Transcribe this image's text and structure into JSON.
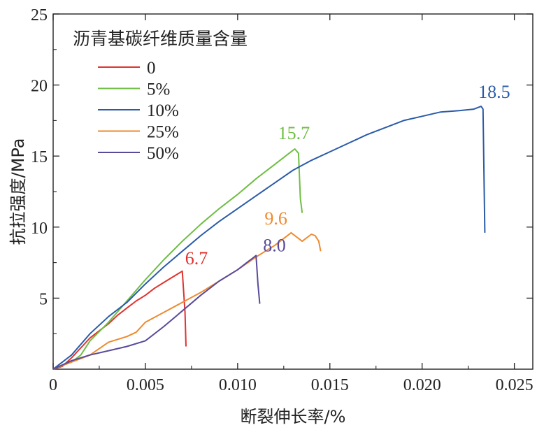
{
  "chart_data": {
    "type": "line",
    "xlabel": "断裂伸长率/%",
    "ylabel": "抗拉强度/MPa",
    "xlim": [
      0,
      0.026
    ],
    "ylim": [
      0,
      25
    ],
    "x_ticks": [
      0,
      0.005,
      0.01,
      0.015,
      0.02,
      0.025
    ],
    "x_tick_labels": [
      "0",
      "0.005",
      "0.010",
      "0.015",
      "0.020",
      "0.025"
    ],
    "y_ticks": [
      5,
      10,
      15,
      20,
      25
    ],
    "y_tick_labels": [
      "5",
      "10",
      "15",
      "20",
      "25"
    ],
    "legend_title": "沥青基碳纤维质量含量",
    "legend_position": "top-left",
    "series": [
      {
        "name": "0",
        "color": "#e0332f",
        "peak_label": "6.7",
        "points": [
          [
            0,
            0
          ],
          [
            0.0005,
            0.2
          ],
          [
            0.001,
            0.8
          ],
          [
            0.0015,
            1.5
          ],
          [
            0.002,
            2.2
          ],
          [
            0.0025,
            2.7
          ],
          [
            0.003,
            3.2
          ],
          [
            0.0035,
            3.8
          ],
          [
            0.004,
            4.3
          ],
          [
            0.0045,
            4.8
          ],
          [
            0.005,
            5.2
          ],
          [
            0.0055,
            5.7
          ],
          [
            0.006,
            6.1
          ],
          [
            0.0065,
            6.5
          ],
          [
            0.007,
            6.9
          ],
          [
            0.00715,
            4.0
          ],
          [
            0.0072,
            1.6
          ]
        ]
      },
      {
        "name": "5%",
        "color": "#6fbe44",
        "peak_label": "15.7",
        "points": [
          [
            0,
            0
          ],
          [
            0.001,
            0.5
          ],
          [
            0.0015,
            1.0
          ],
          [
            0.002,
            2.0
          ],
          [
            0.003,
            3.3
          ],
          [
            0.004,
            4.8
          ],
          [
            0.005,
            6.3
          ],
          [
            0.006,
            7.7
          ],
          [
            0.007,
            9.0
          ],
          [
            0.008,
            10.2
          ],
          [
            0.009,
            11.3
          ],
          [
            0.01,
            12.3
          ],
          [
            0.011,
            13.4
          ],
          [
            0.012,
            14.4
          ],
          [
            0.0128,
            15.2
          ],
          [
            0.0131,
            15.5
          ],
          [
            0.0133,
            15.2
          ],
          [
            0.0134,
            12.0
          ],
          [
            0.0135,
            11.0
          ]
        ]
      },
      {
        "name": "10%",
        "color": "#2a5ba8",
        "peak_label": "18.5",
        "points": [
          [
            0,
            0
          ],
          [
            0.001,
            1.0
          ],
          [
            0.002,
            2.5
          ],
          [
            0.003,
            3.7
          ],
          [
            0.004,
            4.7
          ],
          [
            0.005,
            6.0
          ],
          [
            0.006,
            7.2
          ],
          [
            0.007,
            8.3
          ],
          [
            0.008,
            9.4
          ],
          [
            0.009,
            10.4
          ],
          [
            0.01,
            11.3
          ],
          [
            0.011,
            12.2
          ],
          [
            0.012,
            13.1
          ],
          [
            0.013,
            14.0
          ],
          [
            0.014,
            14.7
          ],
          [
            0.015,
            15.3
          ],
          [
            0.016,
            15.9
          ],
          [
            0.017,
            16.5
          ],
          [
            0.018,
            17.0
          ],
          [
            0.019,
            17.5
          ],
          [
            0.02,
            17.8
          ],
          [
            0.021,
            18.1
          ],
          [
            0.022,
            18.2
          ],
          [
            0.0228,
            18.3
          ],
          [
            0.0232,
            18.5
          ],
          [
            0.0233,
            18.3
          ],
          [
            0.0234,
            9.6
          ]
        ]
      },
      {
        "name": "25%",
        "color": "#ef8a2d",
        "peak_label": "9.6",
        "points": [
          [
            0,
            0
          ],
          [
            0.001,
            0.5
          ],
          [
            0.002,
            1.0
          ],
          [
            0.003,
            1.9
          ],
          [
            0.004,
            2.3
          ],
          [
            0.0045,
            2.6
          ],
          [
            0.005,
            3.3
          ],
          [
            0.006,
            4.0
          ],
          [
            0.007,
            4.7
          ],
          [
            0.008,
            5.4
          ],
          [
            0.009,
            6.2
          ],
          [
            0.01,
            7.0
          ],
          [
            0.011,
            7.9
          ],
          [
            0.012,
            8.7
          ],
          [
            0.0125,
            9.2
          ],
          [
            0.0129,
            9.6
          ],
          [
            0.0132,
            9.3
          ],
          [
            0.0135,
            9.0
          ],
          [
            0.0138,
            9.3
          ],
          [
            0.014,
            9.5
          ],
          [
            0.0142,
            9.4
          ],
          [
            0.0144,
            9.0
          ],
          [
            0.0145,
            8.3
          ]
        ]
      },
      {
        "name": "50%",
        "color": "#5a4a9a",
        "peak_label": "8.0",
        "points": [
          [
            0,
            0
          ],
          [
            0.001,
            0.6
          ],
          [
            0.002,
            1.0
          ],
          [
            0.003,
            1.3
          ],
          [
            0.004,
            1.6
          ],
          [
            0.005,
            2.0
          ],
          [
            0.006,
            3.0
          ],
          [
            0.007,
            4.1
          ],
          [
            0.008,
            5.2
          ],
          [
            0.009,
            6.2
          ],
          [
            0.01,
            7.0
          ],
          [
            0.0105,
            7.5
          ],
          [
            0.0108,
            7.8
          ],
          [
            0.011,
            8.0
          ],
          [
            0.0111,
            6.0
          ],
          [
            0.0112,
            4.6
          ]
        ]
      }
    ]
  }
}
